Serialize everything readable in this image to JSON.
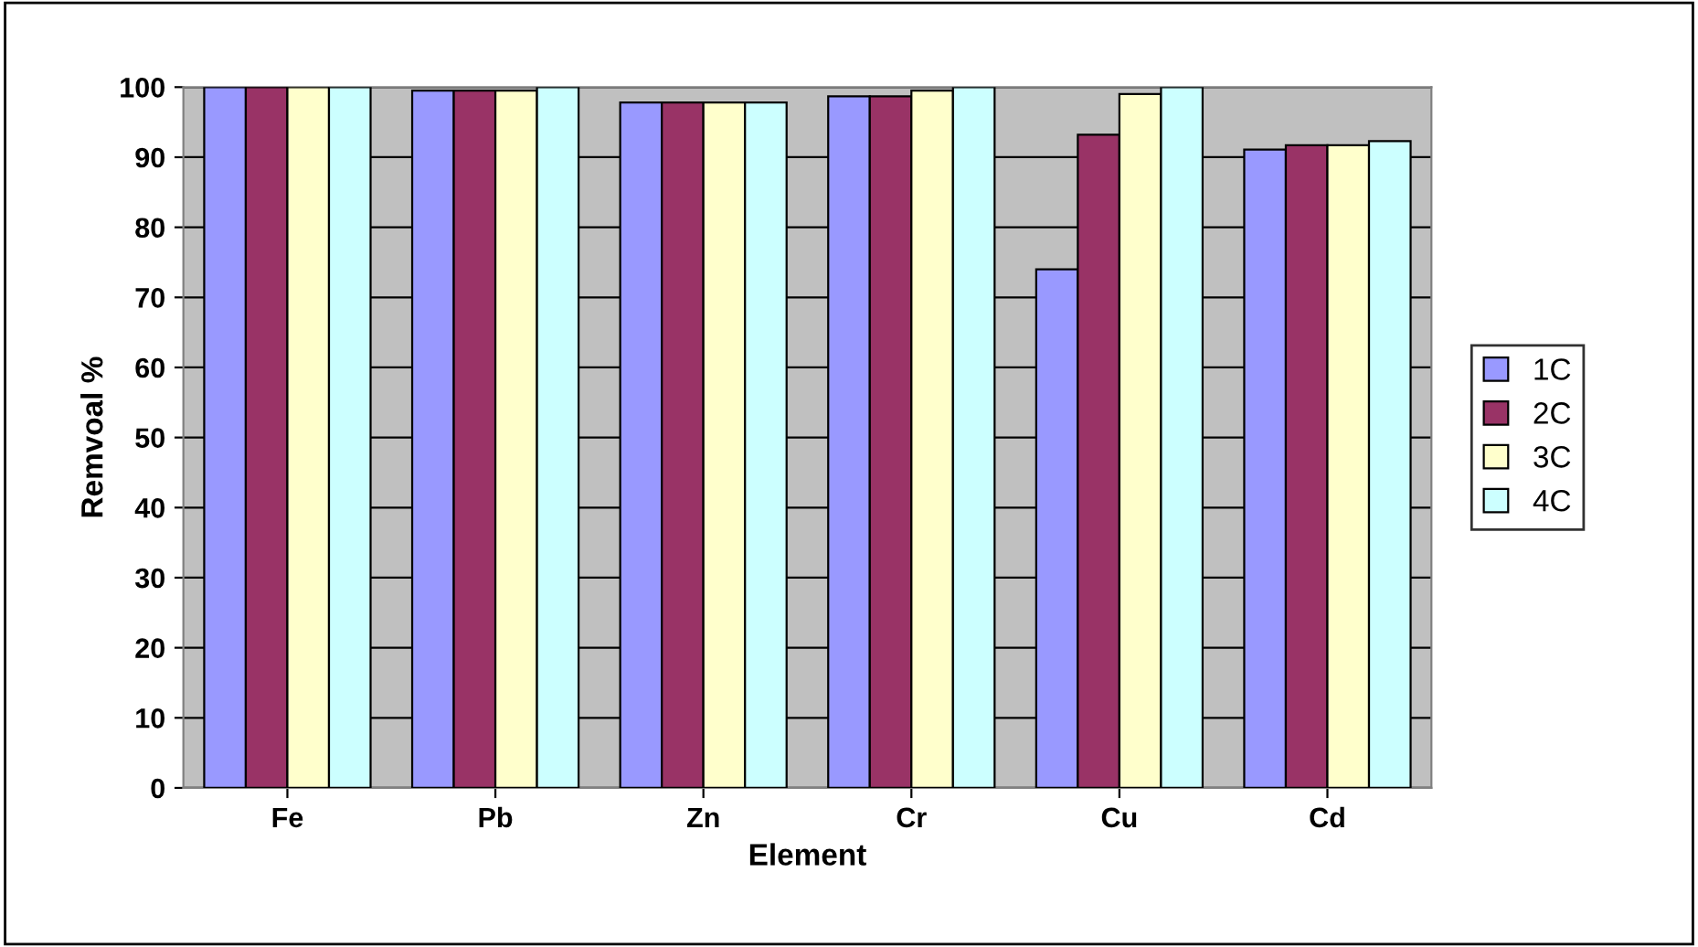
{
  "chart_data": {
    "type": "bar",
    "xlabel": "Element",
    "ylabel": "Remvoal %",
    "categories": [
      "Fe",
      "Pb",
      "Zn",
      "Cr",
      "Cu",
      "Cd"
    ],
    "series": [
      {
        "name": "1C",
        "color": "#9999ff",
        "values": [
          100,
          99.5,
          97.8,
          98.7,
          74,
          91.1
        ]
      },
      {
        "name": "2C",
        "color": "#993366",
        "values": [
          100,
          99.5,
          97.8,
          98.7,
          93.2,
          91.7
        ]
      },
      {
        "name": "3C",
        "color": "#ffffcc",
        "values": [
          100,
          99.5,
          97.8,
          99.5,
          99,
          91.7
        ]
      },
      {
        "name": "4C",
        "color": "#ccffff",
        "values": [
          100,
          100,
          97.8,
          100,
          100,
          92.3
        ]
      }
    ],
    "ylim": [
      0,
      100
    ],
    "yticks": [
      0,
      10,
      20,
      30,
      40,
      50,
      60,
      70,
      80,
      90,
      100
    ],
    "grid": "y",
    "legend": "right"
  }
}
